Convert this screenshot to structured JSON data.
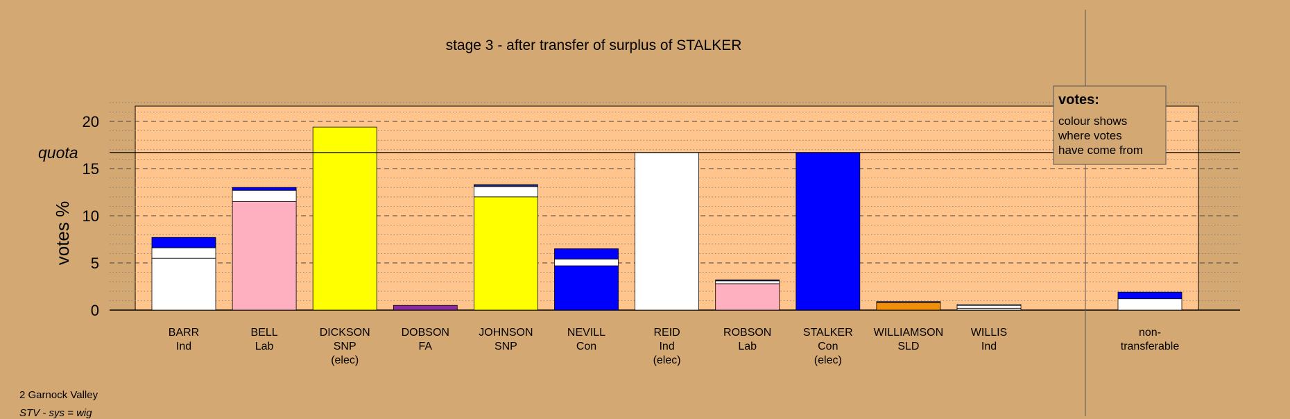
{
  "chart_data": {
    "type": "bar",
    "stacked": true,
    "title": "stage 3 - after transfer of surplus of STALKER",
    "ylabel": "votes %",
    "xlabel": "",
    "ylim": [
      0,
      22
    ],
    "yticks": [
      0,
      5,
      10,
      15,
      20
    ],
    "gridlines": "dashed-major, dotted-minor",
    "quota": {
      "label": "quota",
      "value": 16.7
    },
    "legend": {
      "title": "votes:",
      "lines": [
        "colour shows",
        "where votes",
        "have come from"
      ],
      "position": "top-right"
    },
    "colors": {
      "Ind": "#ffffff",
      "Lab": "#ffb0c0",
      "SNP": "#ffff00",
      "FA": "#8a2aa0",
      "Con": "#0000ff",
      "SLD": "#f0900a",
      "cap": "#1a237e"
    },
    "candidates": [
      {
        "name": "BARR",
        "party": "Ind",
        "status": "",
        "segments": [
          {
            "from": "Ind",
            "value": 5.5
          },
          {
            "from": "Ind",
            "value": 1.1
          },
          {
            "from": "Con",
            "value": 1.1
          }
        ]
      },
      {
        "name": "BELL",
        "party": "Lab",
        "status": "",
        "segments": [
          {
            "from": "Lab",
            "value": 11.5
          },
          {
            "from": "Ind",
            "value": 1.2
          },
          {
            "from": "Con",
            "value": 0.3
          }
        ]
      },
      {
        "name": "DICKSON",
        "party": "SNP",
        "status": "(elec)",
        "segments": [
          {
            "from": "SNP",
            "value": 19.4
          }
        ]
      },
      {
        "name": "DOBSON",
        "party": "FA",
        "status": "",
        "segments": [
          {
            "from": "FA",
            "value": 0.5
          }
        ]
      },
      {
        "name": "JOHNSON",
        "party": "SNP",
        "status": "",
        "segments": [
          {
            "from": "SNP",
            "value": 12.0
          },
          {
            "from": "Ind",
            "value": 1.1
          },
          {
            "from": "cap",
            "value": 0.2
          }
        ]
      },
      {
        "name": "NEVILL",
        "party": "Con",
        "status": "",
        "segments": [
          {
            "from": "Con",
            "value": 4.7
          },
          {
            "from": "Ind",
            "value": 0.7
          },
          {
            "from": "Con",
            "value": 1.1
          }
        ]
      },
      {
        "name": "REID",
        "party": "Ind",
        "status": "(elec)",
        "segments": [
          {
            "from": "Ind",
            "value": 16.7
          }
        ]
      },
      {
        "name": "ROBSON",
        "party": "Lab",
        "status": "",
        "segments": [
          {
            "from": "Lab",
            "value": 2.8
          },
          {
            "from": "Ind",
            "value": 0.3
          },
          {
            "from": "cap",
            "value": 0.1
          }
        ]
      },
      {
        "name": "STALKER",
        "party": "Con",
        "status": "(elec)",
        "segments": [
          {
            "from": "Con",
            "value": 16.7
          }
        ]
      },
      {
        "name": "WILLIAMSON",
        "party": "SLD",
        "status": "",
        "segments": [
          {
            "from": "SLD",
            "value": 0.8
          },
          {
            "from": "cap",
            "value": 0.1
          }
        ]
      },
      {
        "name": "WILLIS",
        "party": "Ind",
        "status": "",
        "segments": [
          {
            "from": "Ind",
            "value": 0.2
          },
          {
            "from": "Ind",
            "value": 0.3
          },
          {
            "from": "Ind",
            "value": 0.1
          }
        ]
      }
    ],
    "nontransferable": {
      "label_line1": "non-",
      "label_line2": "transferable",
      "segments": [
        {
          "from": "Ind",
          "value": 1.2
        },
        {
          "from": "Con",
          "value": 0.7
        }
      ]
    }
  },
  "footer": {
    "line1": "2 Garnock Valley",
    "line2": "STV - sys = wig"
  }
}
